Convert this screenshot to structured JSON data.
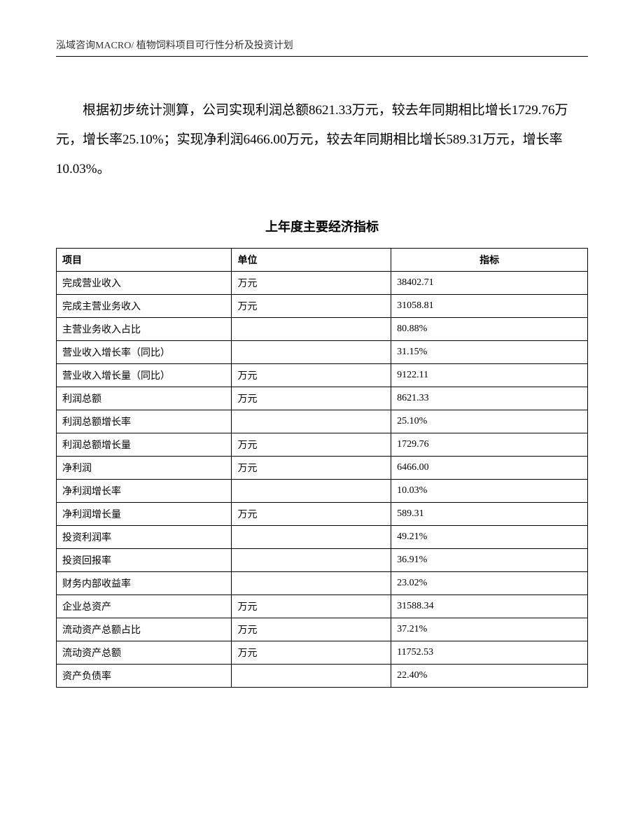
{
  "header": {
    "text": "泓域咨询MACRO/ 植物饲料项目可行性分析及投资计划"
  },
  "paragraph": {
    "text": "根据初步统计测算，公司实现利润总额8621.33万元，较去年同期相比增长1729.76万元，增长率25.10%；实现净利润6466.00万元，较去年同期相比增长589.31万元，增长率10.03%。"
  },
  "table": {
    "title": "上年度主要经济指标",
    "columns": {
      "name": "项目",
      "unit": "单位",
      "value": "指标"
    },
    "rows": [
      {
        "name": "完成营业收入",
        "unit": "万元",
        "value": "38402.71"
      },
      {
        "name": "完成主营业务收入",
        "unit": "万元",
        "value": "31058.81"
      },
      {
        "name": "主营业务收入占比",
        "unit": "",
        "value": "80.88%"
      },
      {
        "name": "营业收入增长率（同比）",
        "unit": "",
        "value": "31.15%"
      },
      {
        "name": "营业收入增长量（同比）",
        "unit": "万元",
        "value": "9122.11"
      },
      {
        "name": "利润总额",
        "unit": "万元",
        "value": "8621.33"
      },
      {
        "name": "利润总额增长率",
        "unit": "",
        "value": "25.10%"
      },
      {
        "name": "利润总额增长量",
        "unit": "万元",
        "value": "1729.76"
      },
      {
        "name": "净利润",
        "unit": "万元",
        "value": "6466.00"
      },
      {
        "name": "净利润增长率",
        "unit": "",
        "value": "10.03%"
      },
      {
        "name": "净利润增长量",
        "unit": "万元",
        "value": "589.31"
      },
      {
        "name": "投资利润率",
        "unit": "",
        "value": "49.21%"
      },
      {
        "name": "投资回报率",
        "unit": "",
        "value": "36.91%"
      },
      {
        "name": "财务内部收益率",
        "unit": "",
        "value": "23.02%"
      },
      {
        "name": "企业总资产",
        "unit": "万元",
        "value": "31588.34"
      },
      {
        "name": "流动资产总额占比",
        "unit": "万元",
        "value": "37.21%"
      },
      {
        "name": "流动资产总额",
        "unit": "万元",
        "value": "11752.53"
      },
      {
        "name": "资产负债率",
        "unit": "",
        "value": "22.40%"
      }
    ]
  }
}
